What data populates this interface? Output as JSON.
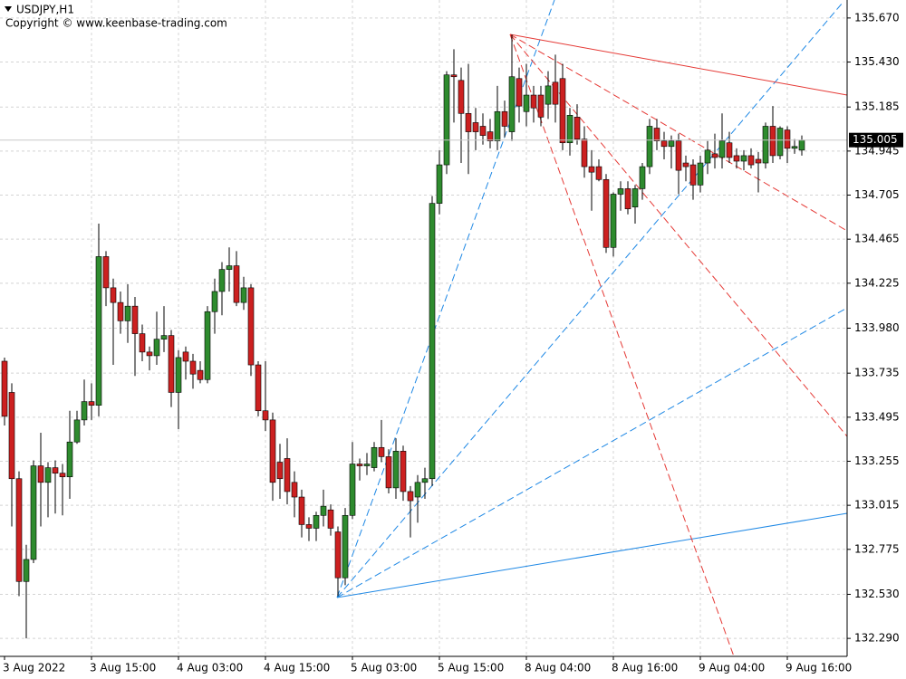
{
  "chart_data": {
    "type": "candlestick",
    "title": "USDJPY,H1",
    "subtitle": "Copyright © www.keenbase-trading.com",
    "categories": [
      "3 Aug 2022",
      null,
      null,
      null,
      null,
      null,
      null,
      null,
      null,
      null,
      null,
      null,
      "3 Aug 15:00",
      null,
      null,
      null,
      null,
      null,
      null,
      null,
      null,
      null,
      null,
      null,
      "4 Aug 03:00",
      null,
      null,
      null,
      null,
      null,
      null,
      null,
      null,
      null,
      null,
      null,
      "4 Aug 15:00",
      null,
      null,
      null,
      null,
      null,
      null,
      null,
      null,
      null,
      null,
      null,
      "5 Aug 03:00",
      null,
      null,
      null,
      null,
      null,
      null,
      null,
      null,
      null,
      null,
      null,
      "5 Aug 15:00",
      null,
      null,
      null,
      null,
      null,
      null,
      null,
      null,
      null,
      null,
      null,
      "8 Aug 04:00",
      null,
      null,
      null,
      null,
      null,
      null,
      null,
      null,
      null,
      null,
      null,
      "8 Aug 16:00",
      null,
      null,
      null,
      null,
      null,
      null,
      null,
      null,
      null,
      null,
      null,
      "9 Aug 04:00",
      null,
      null,
      null,
      null,
      null,
      null,
      null,
      null,
      null,
      null,
      null,
      "9 Aug 16:00",
      null,
      null
    ],
    "open": [
      133.8,
      133.63,
      133.16,
      132.6,
      132.72,
      133.23,
      133.14,
      133.22,
      133.19,
      133.17,
      133.36,
      133.48,
      133.58,
      133.56,
      134.37,
      134.2,
      134.12,
      134.02,
      134.1,
      133.95,
      133.85,
      133.83,
      133.92,
      133.94,
      133.63,
      133.85,
      133.8,
      133.75,
      133.7,
      134.07,
      134.18,
      134.3,
      134.32,
      134.12,
      134.2,
      133.78,
      133.53,
      133.48,
      133.25,
      133.27,
      133.14,
      133.06,
      132.91,
      132.89,
      132.96,
      132.99,
      132.87,
      132.62,
      132.96,
      133.24,
      133.23,
      133.22,
      133.33,
      133.28,
      133.11,
      133.31,
      133.09,
      133.06,
      133.14,
      133.16,
      134.66,
      134.87,
      135.36,
      135.33,
      135.15,
      135.1,
      135.08,
      135.05,
      135.0,
      135.16,
      135.05,
      135.34,
      135.16,
      135.25,
      135.25,
      135.2,
      135.32,
      135.34,
      134.99,
      135.13,
      135.01,
      134.86,
      134.86,
      134.79,
      134.42,
      134.71,
      134.74,
      134.64,
      134.74,
      134.86,
      135.07,
      135.0,
      134.97,
      135.0,
      134.88,
      134.87,
      134.76,
      134.88,
      134.93,
      134.91,
      134.99,
      134.92,
      134.89,
      134.92,
      134.9,
      134.88,
      135.08,
      134.92,
      135.06,
      134.96,
      134.95
    ],
    "high": [
      133.82,
      133.68,
      133.2,
      132.8,
      133.26,
      133.41,
      133.25,
      133.26,
      133.24,
      133.53,
      133.53,
      133.7,
      133.68,
      134.55,
      134.4,
      134.25,
      134.18,
      134.22,
      134.15,
      134.0,
      133.88,
      134.07,
      134.1,
      133.97,
      133.86,
      133.88,
      133.84,
      133.8,
      134.1,
      134.25,
      134.34,
      134.42,
      134.4,
      134.26,
      134.22,
      133.8,
      133.8,
      133.52,
      133.35,
      133.38,
      133.2,
      133.1,
      132.95,
      132.98,
      133.1,
      133.02,
      132.9,
      133.0,
      133.36,
      133.27,
      133.3,
      133.36,
      133.48,
      133.32,
      133.38,
      133.34,
      133.12,
      133.18,
      133.22,
      134.7,
      134.95,
      135.38,
      135.5,
      135.4,
      135.42,
      135.18,
      135.15,
      135.12,
      135.3,
      135.22,
      135.58,
      135.4,
      135.42,
      135.3,
      135.3,
      135.38,
      135.47,
      135.42,
      135.18,
      135.2,
      135.08,
      134.95,
      134.9,
      134.82,
      134.72,
      134.78,
      134.78,
      134.76,
      134.88,
      135.12,
      135.12,
      135.05,
      135.03,
      135.04,
      134.92,
      134.9,
      134.92,
      135.0,
      135.04,
      135.15,
      135.05,
      134.96,
      134.95,
      134.96,
      134.94,
      135.1,
      135.19,
      135.08,
      135.08,
      135.01,
      135.03
    ],
    "low": [
      133.45,
      132.9,
      132.52,
      132.29,
      132.7,
      132.9,
      132.95,
      132.97,
      132.96,
      133.05,
      133.35,
      133.45,
      133.48,
      133.5,
      134.1,
      133.78,
      133.95,
      133.9,
      133.72,
      133.8,
      133.75,
      133.78,
      133.85,
      133.55,
      133.43,
      133.7,
      133.65,
      133.68,
      133.68,
      133.95,
      134.05,
      134.18,
      134.1,
      134.08,
      133.72,
      133.5,
      133.42,
      133.04,
      133.05,
      133.02,
      132.95,
      132.84,
      132.82,
      132.82,
      132.9,
      132.85,
      132.52,
      132.58,
      132.94,
      133.15,
      133.18,
      133.2,
      133.25,
      133.08,
      133.05,
      133.04,
      132.84,
      132.92,
      133.05,
      133.12,
      134.6,
      134.82,
      135.1,
      134.88,
      134.82,
      134.95,
      134.98,
      134.96,
      134.95,
      135.02,
      135.0,
      135.1,
      135.08,
      135.1,
      135.08,
      135.12,
      135.1,
      134.95,
      134.92,
      134.98,
      134.8,
      134.62,
      134.78,
      134.39,
      134.37,
      134.62,
      134.6,
      134.55,
      134.68,
      134.82,
      134.95,
      134.9,
      134.85,
      134.71,
      134.78,
      134.68,
      134.72,
      134.82,
      134.85,
      134.85,
      134.88,
      134.85,
      134.84,
      134.85,
      134.72,
      134.85,
      134.88,
      134.9,
      134.88,
      134.93,
      134.92
    ],
    "close": [
      133.5,
      133.16,
      132.6,
      132.72,
      133.23,
      133.14,
      133.22,
      133.19,
      133.17,
      133.36,
      133.48,
      133.58,
      133.56,
      134.37,
      134.2,
      134.12,
      134.02,
      134.1,
      133.95,
      133.85,
      133.83,
      133.92,
      133.94,
      133.63,
      133.82,
      133.8,
      133.73,
      133.7,
      134.07,
      134.18,
      134.3,
      134.32,
      134.12,
      134.2,
      133.78,
      133.53,
      133.48,
      133.14,
      133.16,
      133.09,
      133.06,
      132.91,
      132.89,
      132.96,
      133.01,
      132.89,
      132.62,
      132.96,
      133.24,
      133.23,
      133.24,
      133.33,
      133.28,
      133.11,
      133.31,
      133.09,
      133.04,
      133.14,
      133.16,
      134.66,
      134.87,
      135.36,
      135.35,
      135.15,
      135.05,
      135.05,
      135.03,
      135.0,
      135.16,
      135.08,
      135.35,
      135.19,
      135.25,
      135.18,
      135.13,
      135.3,
      135.2,
      134.99,
      135.14,
      135.01,
      134.86,
      134.83,
      134.79,
      134.42,
      134.71,
      134.74,
      134.63,
      134.74,
      134.86,
      135.08,
      135.0,
      134.97,
      135.0,
      134.84,
      134.86,
      134.76,
      134.88,
      134.95,
      134.91,
      135.0,
      134.91,
      134.89,
      134.92,
      134.87,
      134.88,
      135.08,
      134.92,
      135.07,
      134.96,
      134.97,
      135.005
    ],
    "up_color": "#2e8b2e",
    "down_color": "#cc2020",
    "last_price": 135.005,
    "ylim": [
      132.192,
      135.768
    ],
    "yticks": [
      {
        "value": 135.67,
        "label": "135.670"
      },
      {
        "value": 135.43,
        "label": "135.430"
      },
      135.185,
      134.945,
      134.705,
      134.465,
      134.225,
      {
        "value": 133.98,
        "label": "133.980"
      },
      133.735,
      133.495,
      133.255,
      133.015,
      132.775,
      {
        "value": 132.53,
        "label": "132.530"
      },
      {
        "value": 132.29,
        "label": "132.290"
      }
    ],
    "grid": true
  }
}
